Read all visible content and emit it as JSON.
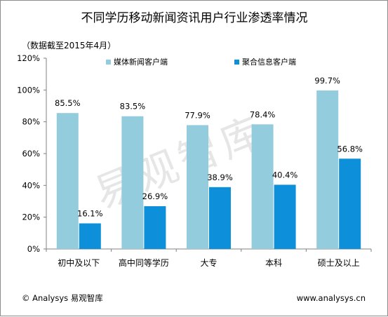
{
  "chart_data": {
    "type": "bar",
    "title": "不同学历移动新闻资讯用户行业渗透率情况",
    "note": "（数据截至2015年4月）",
    "categories": [
      "初中及以下",
      "高中同等学历",
      "大专",
      "本科",
      "硕士及以上"
    ],
    "series": [
      {
        "name": "媒体新闻客户端",
        "values": [
          85.5,
          83.5,
          77.9,
          78.4,
          99.7
        ],
        "labels": [
          "85.5%",
          "83.5%",
          "77.9%",
          "78.4%",
          "99.7%"
        ],
        "color": "#93cddd"
      },
      {
        "name": "聚合信息客户端",
        "values": [
          16.1,
          26.9,
          38.9,
          40.4,
          56.8
        ],
        "labels": [
          "16.1%",
          "26.9%",
          "38.9%",
          "40.4%",
          "56.8%"
        ],
        "color": "#0d8fd9"
      }
    ],
    "yticks": [
      "0%",
      "20%",
      "40%",
      "60%",
      "80%",
      "100%",
      "120%"
    ],
    "ylim": [
      0,
      120
    ],
    "grid": false,
    "legend_position": "top"
  },
  "footer": {
    "left": "© Analysys 易观智库",
    "right": "www.analysys.cn"
  },
  "watermark": "易观智库"
}
